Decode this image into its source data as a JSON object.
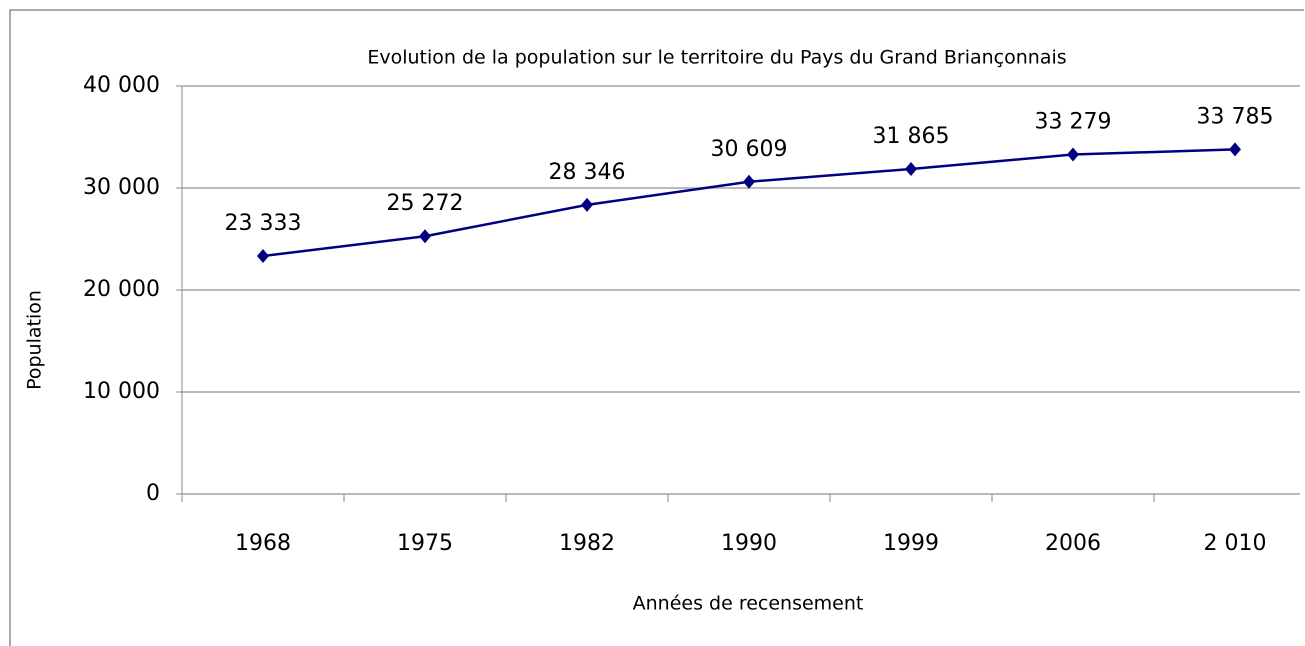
{
  "chart_data": {
    "type": "line",
    "title": "Evolution de la population sur le territoire du Pays du Grand Briançonnais",
    "xlabel": "Années de recensement",
    "ylabel": "Population",
    "categories": [
      "1968",
      "1975",
      "1982",
      "1990",
      "1999",
      "2006",
      "2 010"
    ],
    "series": [
      {
        "name": "Population",
        "color": "#000080",
        "values": [
          23333,
          25272,
          28346,
          30609,
          31865,
          33279,
          33785
        ],
        "value_labels": [
          "23 333",
          "25 272",
          "28 346",
          "30 609",
          "31 865",
          "33 279",
          "33 785"
        ]
      }
    ],
    "ylim": [
      0,
      40000
    ],
    "yticks": [
      0,
      {
        "value": 10000,
        "label": "10 000"
      },
      {
        "value": 20000,
        "label": "20 000"
      },
      {
        "value": 30000,
        "label": "30 000"
      },
      {
        "value": 40000,
        "label": "40 000"
      }
    ],
    "grid": true
  }
}
